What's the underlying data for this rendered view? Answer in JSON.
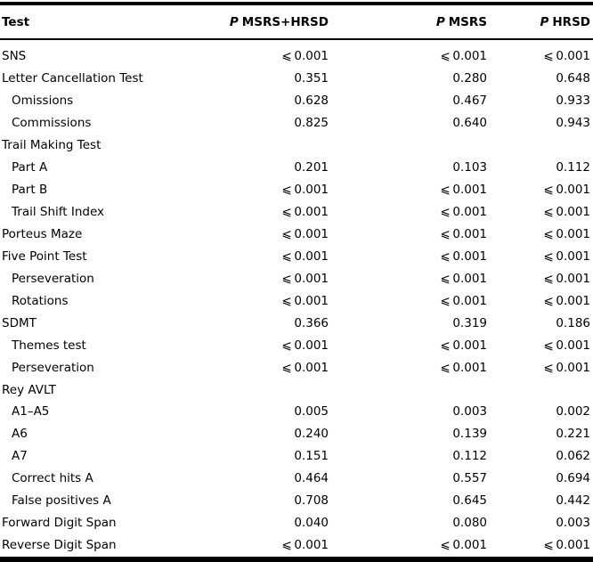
{
  "page": {
    "background_color": "#ffffff",
    "text_color": "#000000",
    "rule_color": "#000000"
  },
  "table": {
    "header": {
      "test_label": "Test",
      "columns": [
        {
          "p": "P",
          "name": "MSRS+HRSD"
        },
        {
          "p": "P",
          "name": "MSRS"
        },
        {
          "p": "P",
          "name": "HRSD"
        }
      ]
    },
    "rows": [
      {
        "label": "SNS",
        "indent": false,
        "values": [
          "⩽ 0.001",
          "⩽ 0.001",
          "⩽ 0.001"
        ]
      },
      {
        "label": "Letter Cancellation Test",
        "indent": false,
        "values": [
          "0.351",
          "0.280",
          "0.648"
        ]
      },
      {
        "label": "Omissions",
        "indent": true,
        "values": [
          "0.628",
          "0.467",
          "0.933"
        ]
      },
      {
        "label": "Commissions",
        "indent": true,
        "values": [
          "0.825",
          "0.640",
          "0.943"
        ]
      },
      {
        "label": "Trail Making Test",
        "indent": false,
        "values": [
          "",
          "",
          ""
        ]
      },
      {
        "label": "Part A",
        "indent": true,
        "values": [
          "0.201",
          "0.103",
          "0.112"
        ]
      },
      {
        "label": "Part B",
        "indent": true,
        "values": [
          "⩽ 0.001",
          "⩽ 0.001",
          "⩽ 0.001"
        ]
      },
      {
        "label": "Trail Shift Index",
        "indent": true,
        "values": [
          "⩽ 0.001",
          "⩽ 0.001",
          "⩽ 0.001"
        ]
      },
      {
        "label": "Porteus Maze",
        "indent": false,
        "values": [
          "⩽ 0.001",
          "⩽ 0.001",
          "⩽ 0.001"
        ]
      },
      {
        "label": "Five Point Test",
        "indent": false,
        "values": [
          "⩽ 0.001",
          "⩽ 0.001",
          "⩽ 0.001"
        ]
      },
      {
        "label": "Perseveration",
        "indent": true,
        "values": [
          "⩽ 0.001",
          "⩽ 0.001",
          "⩽ 0.001"
        ]
      },
      {
        "label": "Rotations",
        "indent": true,
        "values": [
          "⩽ 0.001",
          "⩽ 0.001",
          "⩽ 0.001"
        ]
      },
      {
        "label": "SDMT",
        "indent": false,
        "values": [
          "0.366",
          "0.319",
          "0.186"
        ]
      },
      {
        "label": "Themes test",
        "indent": true,
        "values": [
          "⩽ 0.001",
          "⩽ 0.001",
          "⩽ 0.001"
        ]
      },
      {
        "label": "Perseveration",
        "indent": true,
        "values": [
          "⩽ 0.001",
          "⩽ 0.001",
          "⩽ 0.001"
        ]
      },
      {
        "label": "Rey AVLT",
        "indent": false,
        "values": [
          "",
          "",
          ""
        ]
      },
      {
        "label": "A1–A5",
        "indent": true,
        "values": [
          "0.005",
          "0.003",
          "0.002"
        ]
      },
      {
        "label": "A6",
        "indent": true,
        "values": [
          "0.240",
          "0.139",
          "0.221"
        ]
      },
      {
        "label": "A7",
        "indent": true,
        "values": [
          "0.151",
          "0.112",
          "0.062"
        ]
      },
      {
        "label": "Correct hits A",
        "indent": true,
        "values": [
          "0.464",
          "0.557",
          "0.694"
        ]
      },
      {
        "label": "False positives A",
        "indent": true,
        "values": [
          "0.708",
          "0.645",
          "0.442"
        ]
      },
      {
        "label": "Forward Digit Span",
        "indent": false,
        "values": [
          "0.040",
          "0.080",
          "0.003"
        ]
      },
      {
        "label": "Reverse Digit Span",
        "indent": false,
        "values": [
          "⩽ 0.001",
          "⩽ 0.001",
          "⩽ 0.001"
        ]
      }
    ]
  }
}
